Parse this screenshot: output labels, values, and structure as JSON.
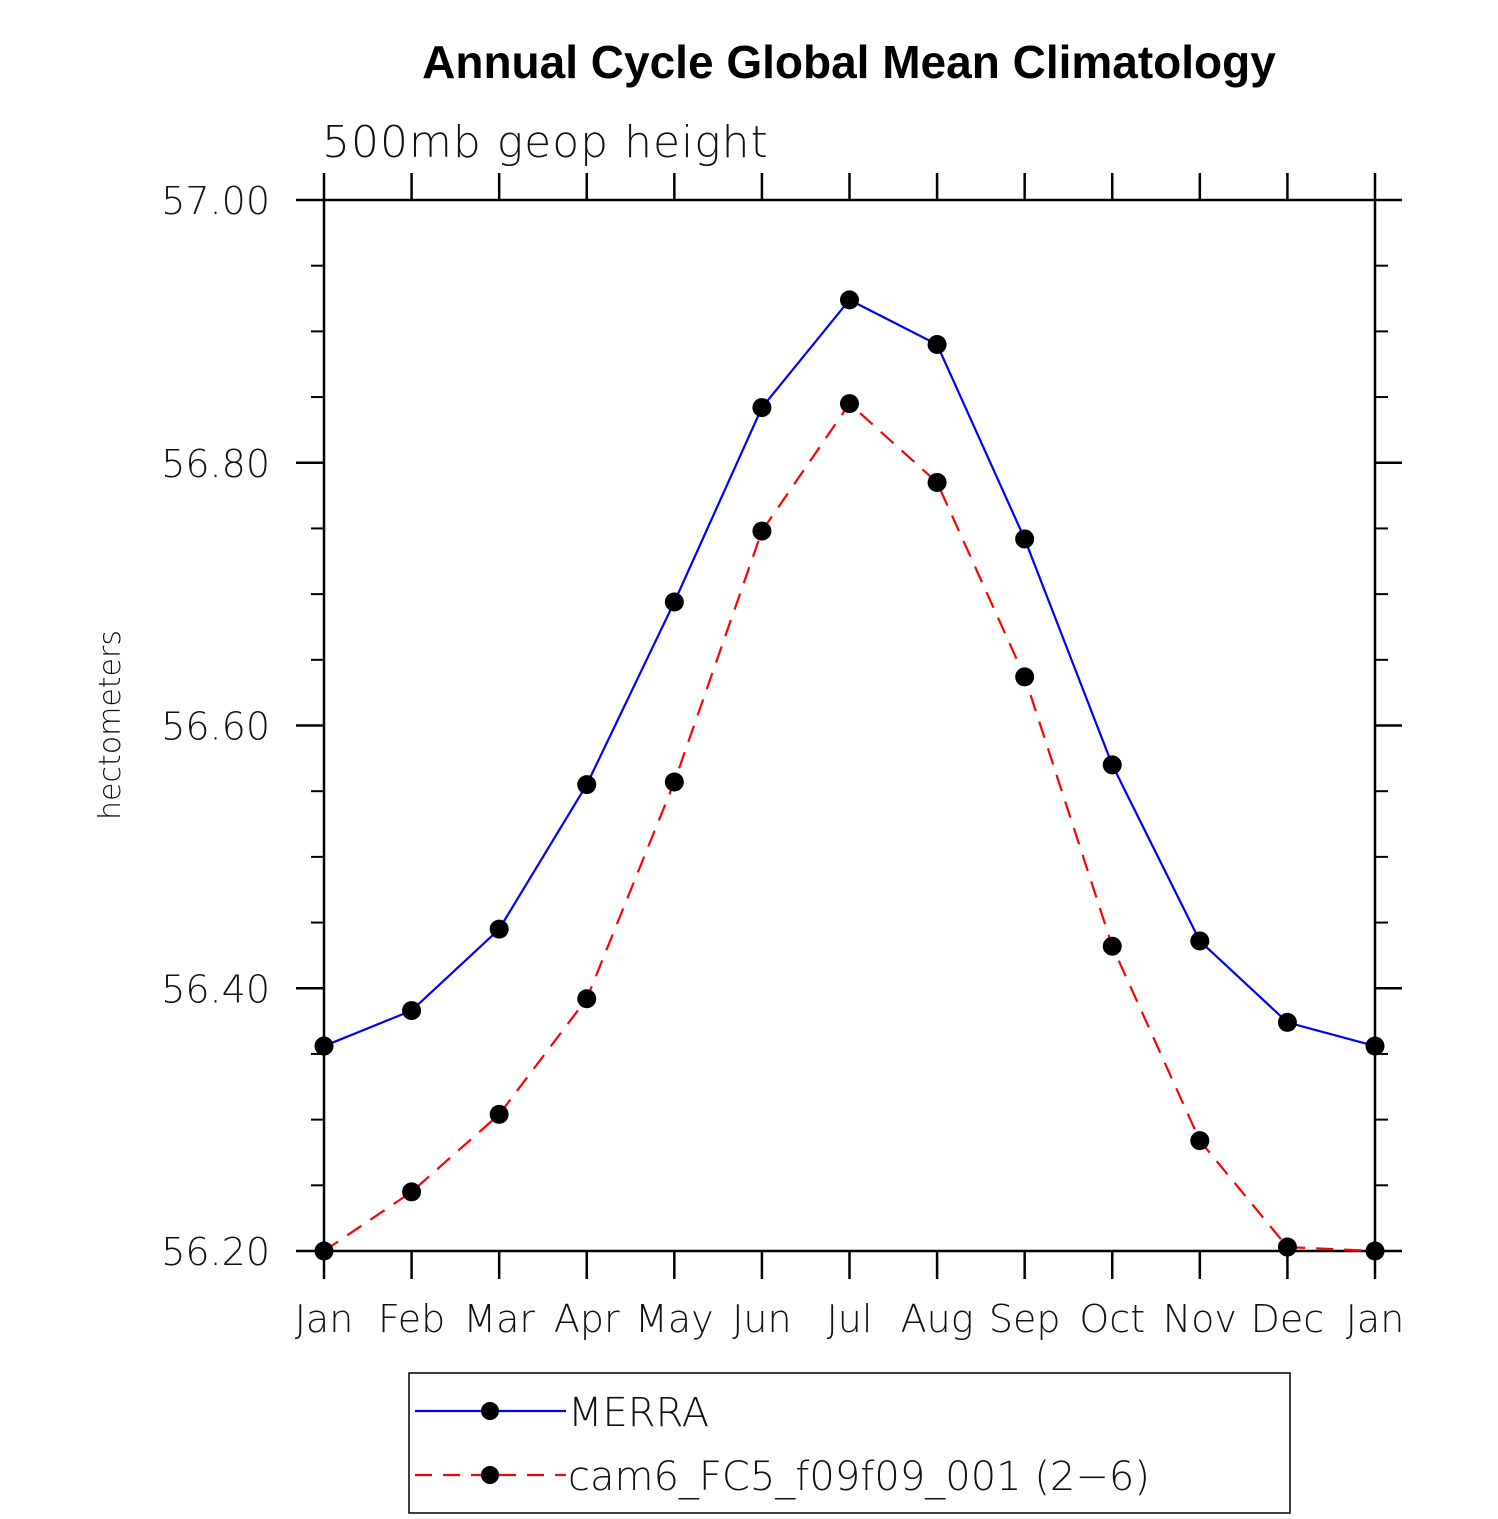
{
  "chart_data": {
    "type": "line",
    "title": "Annual Cycle Global Mean Climatology",
    "subtitle": "500mb geop height",
    "xlabel": "",
    "ylabel": "hectometers",
    "categories": [
      "Jan",
      "Feb",
      "Mar",
      "Apr",
      "May",
      "Jun",
      "Jul",
      "Aug",
      "Sep",
      "Oct",
      "Nov",
      "Dec",
      "Jan"
    ],
    "ylim": [
      56.2,
      57.0
    ],
    "yticks": [
      56.2,
      56.4,
      56.6,
      56.8,
      57.0
    ],
    "ytick_labels": [
      "56.20",
      "56.40",
      "56.60",
      "56.80",
      "57.00"
    ],
    "y_minor_step": 0.05,
    "grid": false,
    "legend_position": "bottom",
    "series": [
      {
        "name": "MERRA",
        "color": "#0000ff",
        "line_style": "solid",
        "marker": "circle",
        "values": [
          56.356,
          56.383,
          56.445,
          56.555,
          56.694,
          56.842,
          56.924,
          56.89,
          56.742,
          56.57,
          56.436,
          56.374,
          56.356
        ]
      },
      {
        "name": "cam6_FC5_f09f09_001 (2−6)",
        "color": "#ff0000",
        "line_style": "dashed",
        "marker": "circle",
        "values": [
          56.2,
          56.245,
          56.304,
          56.392,
          56.557,
          56.748,
          56.845,
          56.785,
          56.637,
          56.432,
          56.284,
          56.203,
          56.2
        ]
      }
    ]
  }
}
